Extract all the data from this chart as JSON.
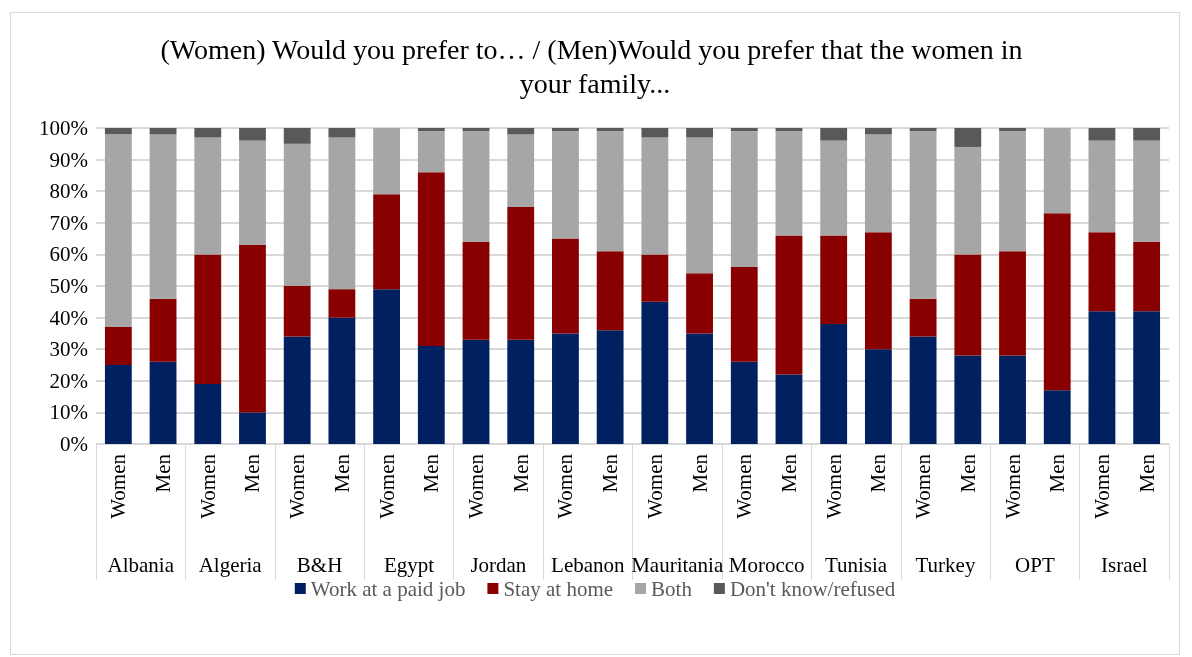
{
  "chart_data": {
    "type": "bar",
    "stacked": true,
    "title": "(Women) Would you prefer to… / (Men)Would you prefer that the women in your family...",
    "categories": [
      "Women",
      "Men",
      "Women",
      "Men",
      "Women",
      "Men",
      "Women",
      "Men",
      "Women",
      "Men",
      "Women",
      "Men",
      "Women",
      "Men",
      "Women",
      "Men",
      "Women",
      "Men",
      "Women",
      "Men",
      "Women",
      "Men",
      "Women",
      "Men"
    ],
    "annotations": [
      "Albania",
      "Algeria",
      "B&H",
      "Egypt",
      "Jordan",
      "Lebanon",
      "Mauritania",
      "Morocco",
      "Tunisia",
      "Turkey",
      "OPT",
      "Israel"
    ],
    "series": [
      {
        "name": "Work at a paid job",
        "color": "#002060",
        "values": [
          25,
          26,
          19,
          10,
          34,
          40,
          49,
          31,
          33,
          33,
          35,
          36,
          45,
          35,
          26,
          22,
          38,
          30,
          34,
          28,
          28,
          17,
          42,
          42
        ]
      },
      {
        "name": "Stay at home",
        "color": "#880000",
        "values": [
          12,
          20,
          41,
          53,
          16,
          9,
          30,
          55,
          31,
          42,
          30,
          25,
          15,
          19,
          30,
          44,
          28,
          37,
          12,
          32,
          33,
          56,
          25,
          22
        ]
      },
      {
        "name": "Both",
        "color": "#a6a6a6",
        "values": [
          61,
          52,
          37,
          33,
          45,
          48,
          21,
          13,
          35,
          23,
          34,
          38,
          37,
          43,
          43,
          33,
          30,
          31,
          53,
          34,
          38,
          27,
          29,
          32
        ]
      },
      {
        "name": "Don't know/refused",
        "color": "#595959",
        "values": [
          2,
          2,
          3,
          4,
          5,
          3,
          0,
          1,
          1,
          2,
          1,
          1,
          3,
          3,
          1,
          1,
          4,
          2,
          1,
          6,
          1,
          0,
          4,
          4
        ]
      }
    ],
    "ylim": [
      0,
      100
    ],
    "yticks": [
      {
        "value": 0,
        "label": "0%"
      },
      {
        "value": 10,
        "label": "10%"
      },
      {
        "value": 20,
        "label": "20%"
      },
      {
        "value": 30,
        "label": "30%"
      },
      {
        "value": 40,
        "label": "40%"
      },
      {
        "value": 50,
        "label": "50%"
      },
      {
        "value": 60,
        "label": "60%"
      },
      {
        "value": 70,
        "label": "70%"
      },
      {
        "value": 80,
        "label": "80%"
      },
      {
        "value": 90,
        "label": "90%"
      },
      {
        "value": 100,
        "label": "100%"
      }
    ],
    "grid": "y",
    "legend": "bottom"
  }
}
